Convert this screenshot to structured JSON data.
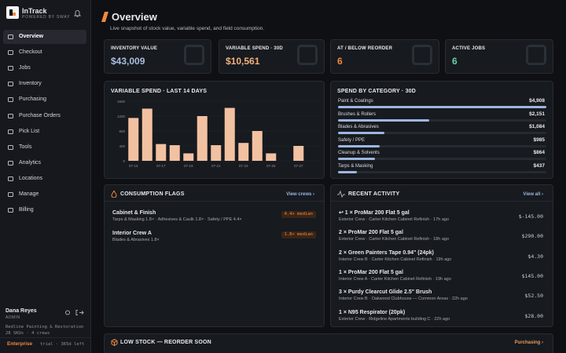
{
  "sidebar": {
    "brand": "InTrack",
    "tagline": "POWERED BY SWAY",
    "nav": [
      "Overview",
      "Checkout",
      "Jobs",
      "Inventory",
      "Purchasing",
      "Purchase Orders",
      "Pick List",
      "Tools",
      "Analytics",
      "Locations",
      "Manage",
      "Billing"
    ],
    "user": {
      "name": "Dana Reyes",
      "role": "ADMIN",
      "company": "Redline Painting & Restoration",
      "meta": "28 SKUs · 4 crews",
      "plan": "Enterprise",
      "trial": "trial · 365d left"
    }
  },
  "header": {
    "title": "Overview",
    "subtitle": "Live snapshot of stock value, variable spend, and field consumption."
  },
  "kpis": [
    {
      "label": "INVENTORY VALUE",
      "value": "$43,009"
    },
    {
      "label": "VARIABLE SPEND · 30D",
      "value": "$10,561"
    },
    {
      "label": "AT / BELOW REORDER",
      "value": "6"
    },
    {
      "label": "ACTIVE JOBS",
      "value": "6"
    }
  ],
  "variable_spend": {
    "title": "VARIABLE SPEND · LAST 14 DAYS",
    "categories": [
      "07-15",
      null,
      "07-17",
      null,
      "07-19",
      null,
      "07-21",
      null,
      "07-23",
      null,
      "07-25",
      null,
      "07-27",
      null
    ],
    "values": [
      1150,
      1400,
      450,
      420,
      200,
      1200,
      420,
      1420,
      480,
      800,
      200,
      0,
      400,
      0
    ],
    "ylim": [
      0,
      1600
    ],
    "yticks": [
      0,
      400,
      800,
      1200,
      1600
    ],
    "color": "#f2c1a1"
  },
  "spend_by_category": {
    "title": "SPEND BY CATEGORY · 30D",
    "categories": [
      "Paint & Coatings",
      "Brushes & Rollers",
      "Blades & Abrasives",
      "Safety / PPE",
      "Cleanup & Solvents",
      "Tarps & Masking"
    ],
    "values": [
      4908,
      2151,
      1084,
      985,
      864,
      437
    ],
    "value_labels": [
      "$4,908",
      "$2,151",
      "$1,084",
      "$985",
      "$864",
      "$437"
    ]
  },
  "consumption_flags": {
    "title": "CONSUMPTION FLAGS",
    "link": "View crews ›",
    "items": [
      {
        "name": "Cabinet & Finish",
        "detail": "Tarps & Masking 1.8× · Adhesives & Caulk 1.8× · Safety / PPE 4.4×",
        "badge": "4.4× median"
      },
      {
        "name": "Interior Crew A",
        "detail": "Blades & Abrasives 1.8×",
        "badge": "1.8× median"
      }
    ]
  },
  "recent_activity": {
    "title": "RECENT ACTIVITY",
    "link": "View all ›",
    "items": [
      {
        "title": "↩ 1 × ProMar 200 Flat 5 gal",
        "detail": "Exterior Crew · Carter Kitchen Cabinet Refinish · 17h ago",
        "amount": "$-145.00"
      },
      {
        "title": "2 × ProMar 200 Flat 5 gal",
        "detail": "Exterior Crew · Carter Kitchen Cabinet Refinish · 18h ago",
        "amount": "$290.00"
      },
      {
        "title": "2 × Green Painters Tape 0.94\" (24pk)",
        "detail": "Interior Crew B · Carter Kitchen Cabinet Refinish · 19h ago",
        "amount": "$4.30"
      },
      {
        "title": "1 × ProMar 200 Flat 5 gal",
        "detail": "Interior Crew A · Carter Kitchen Cabinet Refinish · 19h ago",
        "amount": "$145.00"
      },
      {
        "title": "3 × Purdy Clearcut Glide 2.5\" Brush",
        "detail": "Interior Crew B · Oakwood Clubhouse — Common Areas · 22h ago",
        "amount": "$52.50"
      },
      {
        "title": "1 × N95 Respirator (20pk)",
        "detail": "Exterior Crew · Ridgeline Apartments building C · 22h ago",
        "amount": "$28.00"
      }
    ]
  },
  "low_stock": {
    "title": "LOW STOCK — REORDER SOON",
    "link": "Purchasing ›"
  }
}
